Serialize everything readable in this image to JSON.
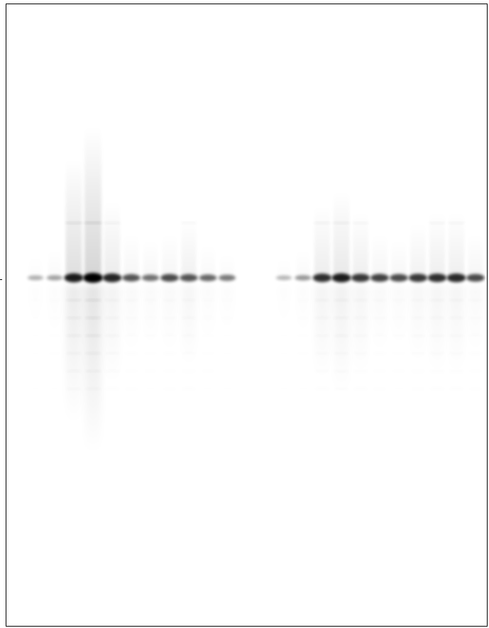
{
  "image": {
    "kind": "gel-autoradiograph",
    "background_color": "#ffffff",
    "band_color": "#000000",
    "frame_color": "#000000"
  },
  "groups": [
    {
      "name": "left-group",
      "lanes": [
        {
          "band": 0.08,
          "smear": 0.05
        },
        {
          "band": 0.15,
          "smear": 0.08
        },
        {
          "band": 0.85,
          "smear": 0.5
        },
        {
          "band": 1.0,
          "smear": 0.65
        },
        {
          "band": 0.8,
          "smear": 0.3
        },
        {
          "band": 0.55,
          "smear": 0.15
        },
        {
          "band": 0.4,
          "smear": 0.12
        },
        {
          "band": 0.6,
          "smear": 0.15
        },
        {
          "band": 0.55,
          "smear": 0.22
        },
        {
          "band": 0.45,
          "smear": 0.1
        },
        {
          "band": 0.35,
          "smear": 0.06
        }
      ]
    },
    {
      "name": "right-group",
      "lanes": [
        {
          "band": 0.05,
          "smear": 0.04
        },
        {
          "band": 0.2,
          "smear": 0.08
        },
        {
          "band": 0.75,
          "smear": 0.28
        },
        {
          "band": 0.85,
          "smear": 0.35
        },
        {
          "band": 0.7,
          "smear": 0.25
        },
        {
          "band": 0.65,
          "smear": 0.15
        },
        {
          "band": 0.6,
          "smear": 0.12
        },
        {
          "band": 0.7,
          "smear": 0.2
        },
        {
          "band": 0.75,
          "smear": 0.25
        },
        {
          "band": 0.78,
          "smear": 0.25
        },
        {
          "band": 0.6,
          "smear": 0.15
        }
      ]
    }
  ]
}
